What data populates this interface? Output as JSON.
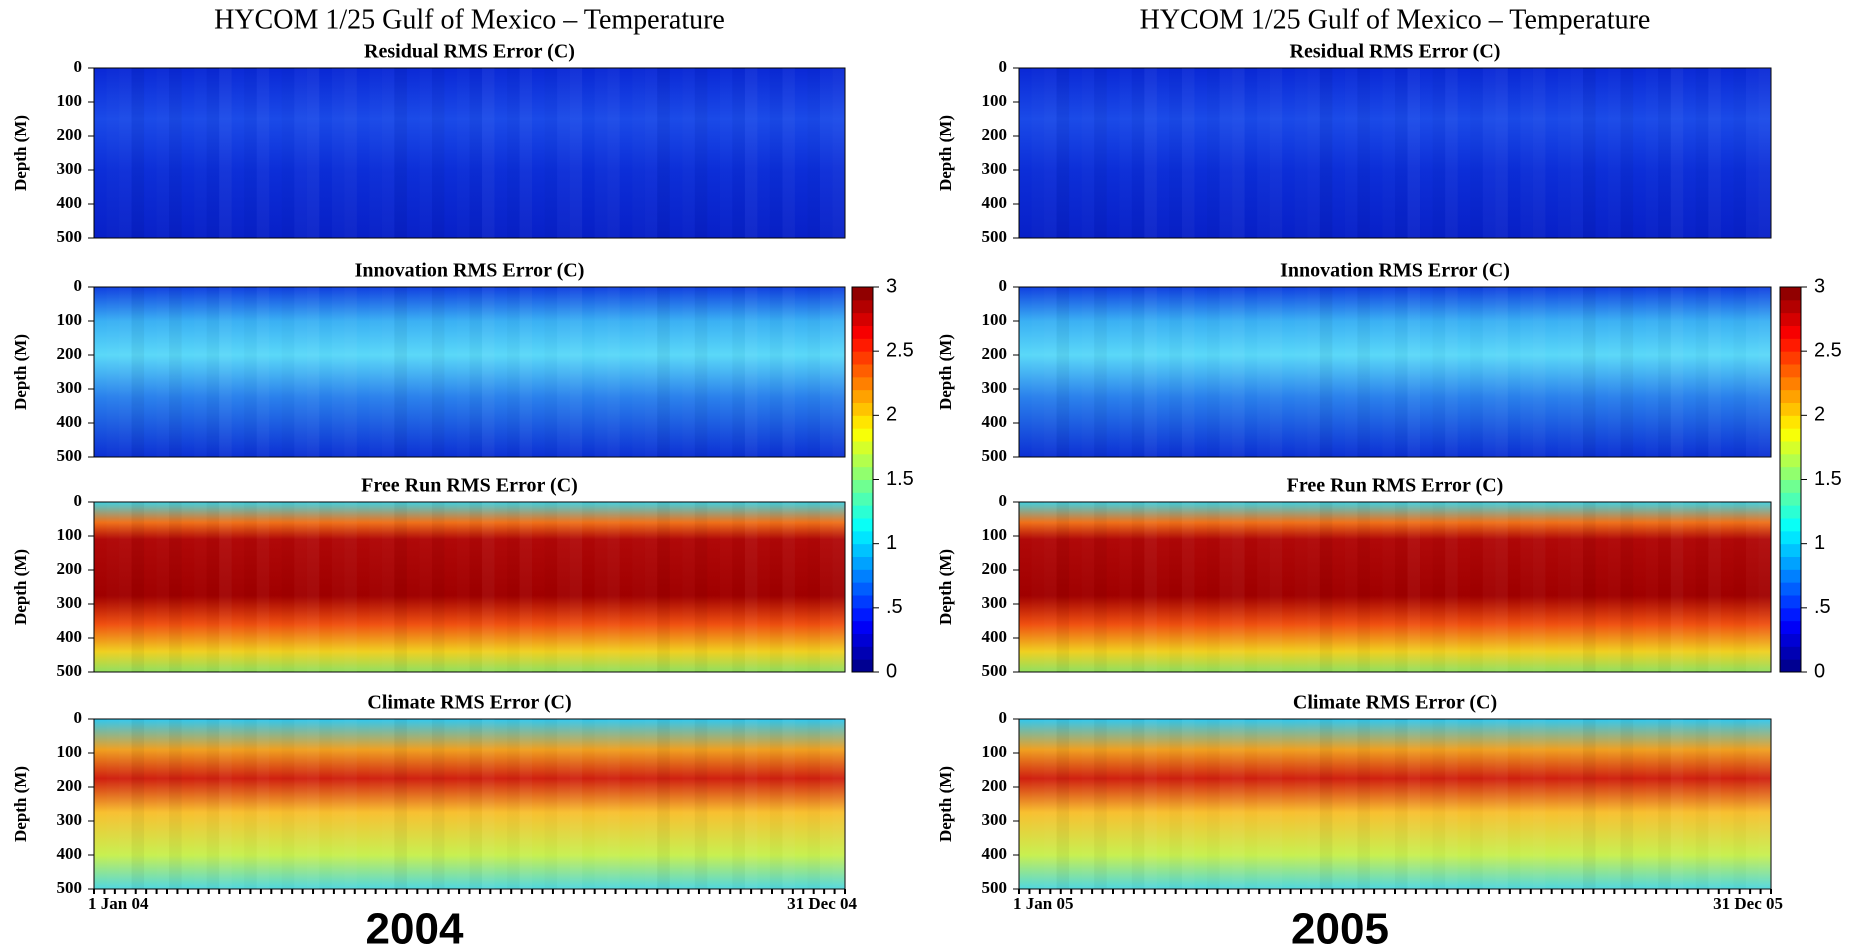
{
  "chart_data": [
    {
      "type": "heatmap",
      "title": "HYCOM 1/25 Gulf of Mexico – Temperature",
      "caption": "2004",
      "panels": [
        "Residual RMS Error (C)",
        "Innovation RMS Error (C)",
        "Free Run RMS Error (C)",
        "Climate RMS Error (C)"
      ],
      "ylabel": "Depth (M)",
      "ylim": [
        0,
        500
      ],
      "y_inverted": true,
      "yticks": [
        0,
        100,
        200,
        300,
        400,
        500
      ],
      "x_labels": [
        "1 Jan 04",
        "31 Dec 04"
      ],
      "colormap": "jet",
      "colorbar": {
        "lim": [
          0,
          3
        ],
        "ticks": [
          0,
          {
            "value": 0.5,
            "label": ".5"
          },
          1,
          1.5,
          2,
          2.5,
          3
        ]
      }
    },
    {
      "type": "heatmap",
      "title": "HYCOM 1/25 Gulf of Mexico – Temperature",
      "caption": "2005",
      "panels": [
        "Residual RMS Error (C)",
        "Innovation RMS Error (C)",
        "Free Run RMS Error (C)",
        "Climate RMS Error (C)"
      ],
      "ylabel": "Depth (M)",
      "ylim": [
        0,
        500
      ],
      "y_inverted": true,
      "yticks": [
        0,
        100,
        200,
        300,
        400,
        500
      ],
      "x_labels": [
        "1 Jan 05",
        "31 Dec 05"
      ],
      "colormap": "jet",
      "colorbar": {
        "lim": [
          0,
          3
        ],
        "ticks": [
          0,
          {
            "value": 0.5,
            "label": ".5"
          },
          1,
          1.5,
          2,
          2.5,
          3
        ]
      }
    }
  ]
}
